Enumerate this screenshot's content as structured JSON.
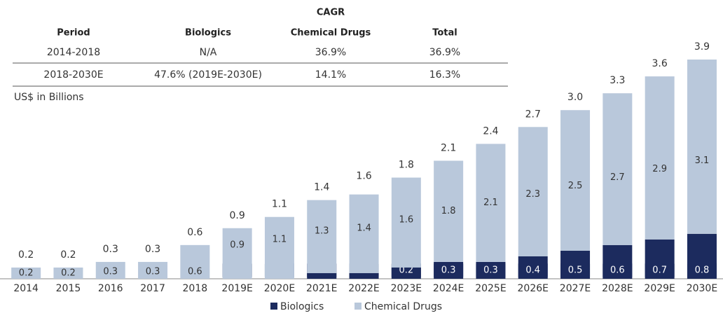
{
  "table": {
    "title": "CAGR",
    "columns": [
      "Period",
      "Biologics",
      "Chemical Drugs",
      "Total"
    ],
    "rows": [
      [
        "2014-2018",
        "N/A",
        "36.9%",
        "36.9%"
      ],
      [
        "2018-2030E",
        "47.6% (2019E-2030E)",
        "14.1%",
        "16.3%"
      ]
    ]
  },
  "chart_data": {
    "type": "bar",
    "stacked": true,
    "unit_label": "US$ in Billions",
    "categories": [
      "2014",
      "2015",
      "2016",
      "2017",
      "2018",
      "2019E",
      "2020E",
      "2021E",
      "2022E",
      "2023E",
      "2024E",
      "2025E",
      "2026E",
      "2027E",
      "2028E",
      "2029E",
      "2030E"
    ],
    "series": [
      {
        "name": "Biologics",
        "color": "#1c2b5e",
        "values": [
          null,
          null,
          null,
          null,
          null,
          0,
          0,
          0.1,
          0.1,
          0.2,
          0.3,
          0.3,
          0.4,
          0.5,
          0.6,
          0.7,
          0.8
        ],
        "value_labels": [
          null,
          null,
          null,
          null,
          null,
          "0.0",
          "0.0",
          "0.1",
          "0.1",
          "0.2",
          "0.3",
          "0.3",
          "0.4",
          "0.5",
          "0.6",
          "0.7",
          "0.8"
        ]
      },
      {
        "name": "Chemical Drugs",
        "color": "#b9c8db",
        "values": [
          0.2,
          0.2,
          0.3,
          0.3,
          0.6,
          0.9,
          1.1,
          1.3,
          1.4,
          1.6,
          1.8,
          2.1,
          2.3,
          2.5,
          2.7,
          2.9,
          3.1
        ],
        "value_labels": [
          "0.2",
          "0.2",
          "0.3",
          "0.3",
          "0.6",
          "0.9",
          "1.1",
          "1.3",
          "1.4",
          "1.6",
          "1.8",
          "2.1",
          "2.3",
          "2.5",
          "2.7",
          "2.9",
          "3.1"
        ]
      }
    ],
    "totals": {
      "values": [
        0.2,
        0.2,
        0.3,
        0.3,
        0.6,
        0.9,
        1.1,
        1.4,
        1.6,
        1.8,
        2.1,
        2.4,
        2.7,
        3.0,
        3.3,
        3.6,
        3.9
      ],
      "value_labels": [
        "0.2",
        "0.2",
        "0.3",
        "0.3",
        "0.6",
        "0.9",
        "1.1",
        "1.4",
        "1.6",
        "1.8",
        "2.1",
        "2.4",
        "2.7",
        "3.0",
        "3.3",
        "3.6",
        "3.9"
      ]
    },
    "ylim": [
      0,
      3.9
    ]
  }
}
